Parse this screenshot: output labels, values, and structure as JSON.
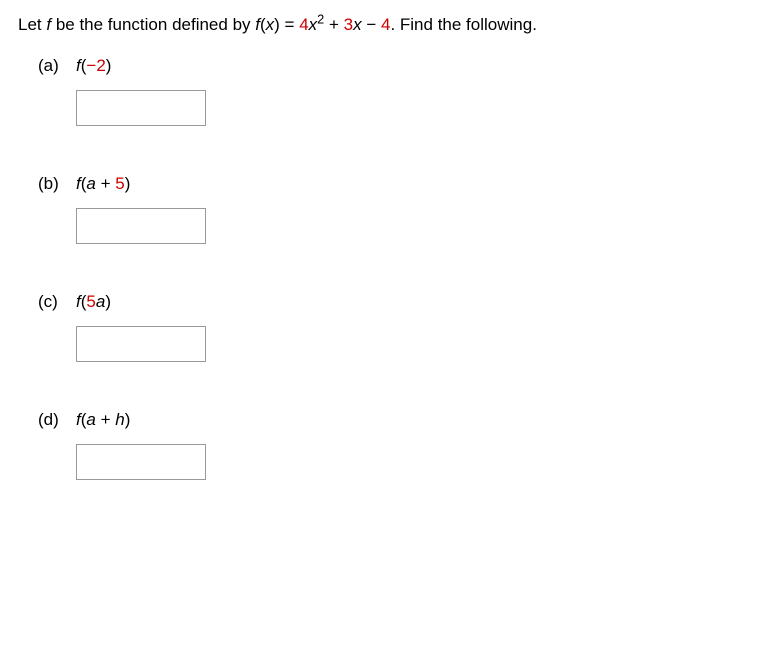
{
  "problem": {
    "prefix": "Let ",
    "func_letter": "f",
    "mid1": " be the function defined by ",
    "func_name": "f",
    "open_paren": "(",
    "var": "x",
    "close_paren": ")",
    "equals": " = ",
    "coef1": "4",
    "var1": "x",
    "exp1": "2",
    "plus1": " + ",
    "coef2": "3",
    "var2": "x",
    "minus": " − ",
    "const": "4",
    "suffix": ". Find the following."
  },
  "parts": {
    "a": {
      "label": "(a)",
      "f": "f",
      "open": "(",
      "arg_num": "−2",
      "close": ")"
    },
    "b": {
      "label": "(b)",
      "f": "f",
      "open": "(",
      "arg_var": "a",
      "plus": " + ",
      "arg_num": "5",
      "close": ")"
    },
    "c": {
      "label": "(c)",
      "f": "f",
      "open": "(",
      "arg_num": "5",
      "arg_var": "a",
      "close": ")"
    },
    "d": {
      "label": "(d)",
      "f": "f",
      "open": "(",
      "arg_var1": "a",
      "plus": " + ",
      "arg_var2": "h",
      "close": ")"
    }
  }
}
